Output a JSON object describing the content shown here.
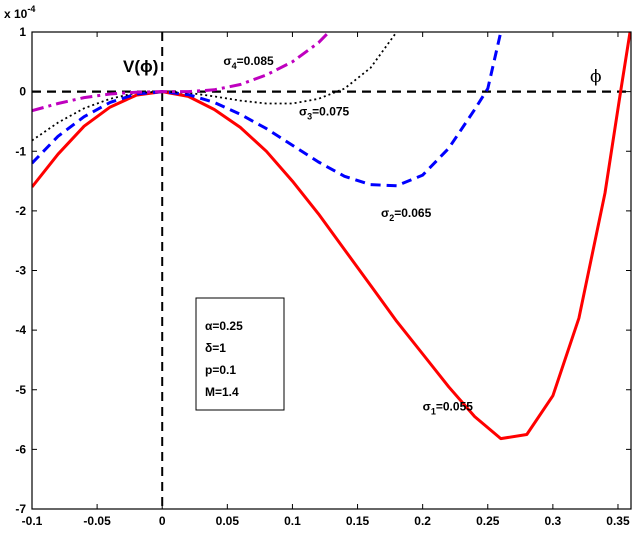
{
  "chart_data": {
    "type": "line",
    "exponent_label": "x 10",
    "exponent_power": "-4",
    "ylabel": "V(ϕ)",
    "xlabel": "ϕ",
    "xlim": [
      -0.1,
      0.36
    ],
    "ylim": [
      -7,
      1
    ],
    "x_ticks": [
      "-0.1",
      "-0.05",
      "0",
      "0.05",
      "0.1",
      "0.15",
      "0.2",
      "0.25",
      "0.3",
      "0.35"
    ],
    "y_ticks": [
      "1",
      "0",
      "-1",
      "-2",
      "-3",
      "-4",
      "-5",
      "-6",
      "-7"
    ],
    "params_box": [
      "α=0.25",
      "δ=1",
      "p=0.1",
      "M=1.4"
    ],
    "series": [
      {
        "name": "σ1=0.055",
        "symbol": "σ",
        "subscript": "1",
        "value_text": "=0.055",
        "color": "#ff0000",
        "style": "solid",
        "x": [
          -0.1,
          -0.08,
          -0.06,
          -0.04,
          -0.02,
          0.0,
          0.02,
          0.04,
          0.06,
          0.08,
          0.1,
          0.12,
          0.14,
          0.16,
          0.18,
          0.2,
          0.22,
          0.24,
          0.26,
          0.28,
          0.3,
          0.32,
          0.34,
          0.352,
          0.36
        ],
        "y": [
          -1.6,
          -1.05,
          -0.58,
          -0.26,
          -0.06,
          0.0,
          -0.08,
          -0.3,
          -0.6,
          -1.0,
          -1.5,
          -2.05,
          -2.65,
          -3.25,
          -3.85,
          -4.4,
          -4.95,
          -5.45,
          -5.82,
          -5.75,
          -5.1,
          -3.8,
          -1.7,
          0.0,
          1.1
        ]
      },
      {
        "name": "σ2=0.065",
        "symbol": "σ",
        "subscript": "2",
        "value_text": "=0.065",
        "color": "#0000ff",
        "style": "dashed",
        "x": [
          -0.1,
          -0.08,
          -0.06,
          -0.04,
          -0.02,
          0.0,
          0.02,
          0.04,
          0.06,
          0.08,
          0.1,
          0.12,
          0.14,
          0.16,
          0.18,
          0.2,
          0.22,
          0.24,
          0.25,
          0.26
        ],
        "y": [
          -1.2,
          -0.75,
          -0.42,
          -0.18,
          -0.04,
          0.0,
          -0.05,
          -0.18,
          -0.38,
          -0.62,
          -0.9,
          -1.18,
          -1.42,
          -1.56,
          -1.58,
          -1.4,
          -0.95,
          -0.3,
          0.05,
          1.0
        ]
      },
      {
        "name": "σ3=0.075",
        "symbol": "σ",
        "subscript": "3",
        "value_text": "=0.075",
        "color": "#000000",
        "style": "dotted",
        "x": [
          -0.1,
          -0.08,
          -0.06,
          -0.04,
          -0.02,
          0.0,
          0.02,
          0.04,
          0.06,
          0.08,
          0.1,
          0.12,
          0.14,
          0.16,
          0.18
        ],
        "y": [
          -0.82,
          -0.52,
          -0.28,
          -0.12,
          -0.02,
          0.0,
          -0.02,
          -0.08,
          -0.15,
          -0.2,
          -0.2,
          -0.12,
          0.05,
          0.4,
          1.0
        ]
      },
      {
        "name": "σ4=0.085",
        "symbol": "σ",
        "subscript": "4",
        "value_text": "=0.085",
        "color": "#bf00bf",
        "style": "dashdot",
        "x": [
          -0.1,
          -0.08,
          -0.06,
          -0.04,
          -0.02,
          0.0,
          0.02,
          0.04,
          0.06,
          0.08,
          0.1,
          0.12,
          0.128
        ],
        "y": [
          -0.32,
          -0.2,
          -0.1,
          -0.04,
          -0.01,
          0.0,
          0.0,
          0.03,
          0.12,
          0.28,
          0.5,
          0.82,
          1.0
        ]
      }
    ]
  }
}
